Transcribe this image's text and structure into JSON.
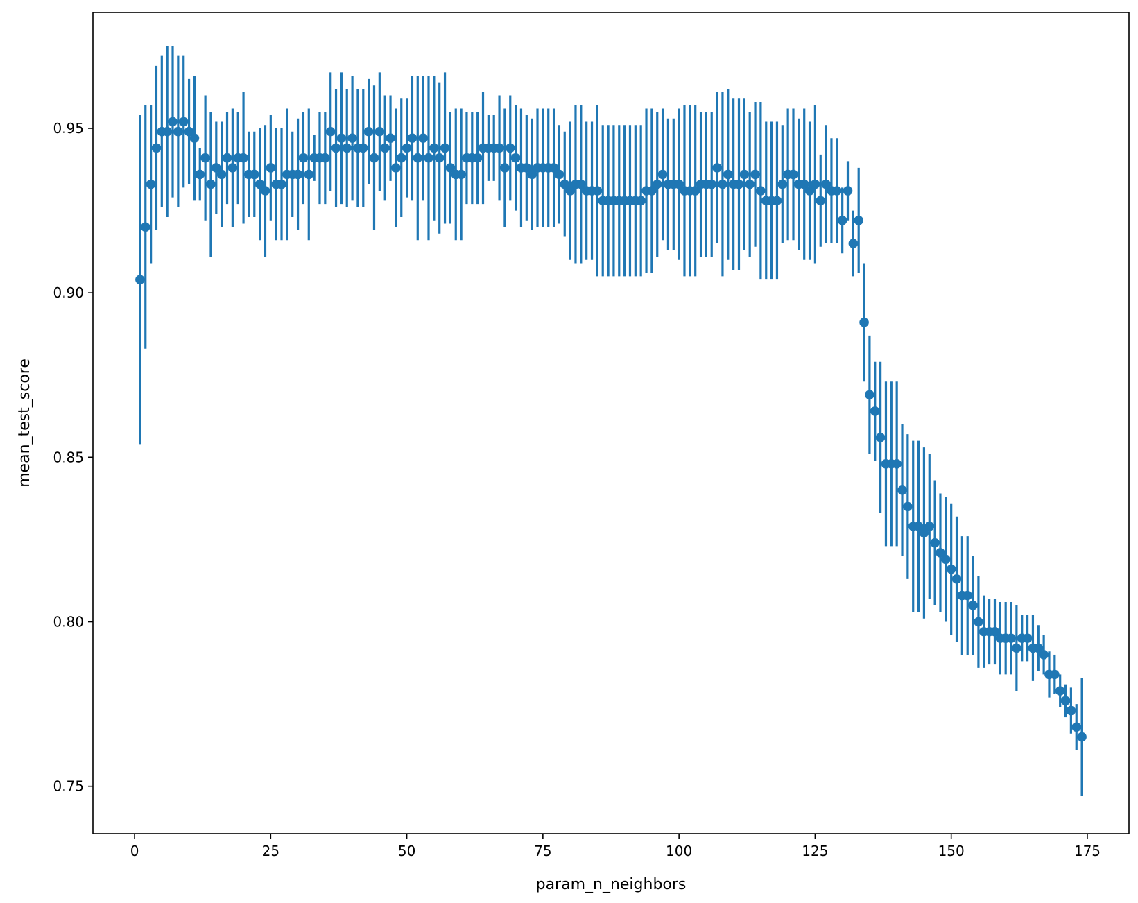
{
  "chart_data": {
    "type": "scatter",
    "title": "",
    "xlabel": "param_n_neighbors",
    "ylabel": "mean_test_score",
    "xlim": [
      -7.65,
      182.65
    ],
    "ylim": [
      0.7356,
      0.9852
    ],
    "xticks": [
      0,
      25,
      50,
      75,
      100,
      125,
      150,
      175
    ],
    "xtick_labels": [
      "0",
      "25",
      "50",
      "75",
      "100",
      "125",
      "150",
      "175"
    ],
    "yticks": [
      0.75,
      0.8,
      0.85,
      0.9,
      0.95
    ],
    "ytick_labels": [
      "0.75",
      "0.80",
      "0.85",
      "0.90",
      "0.95"
    ],
    "grid": false,
    "legend": "none",
    "color": "#1f77b4",
    "series": [
      {
        "x": [
          1,
          2,
          3,
          4,
          5,
          6,
          7,
          8,
          9,
          10,
          11,
          12,
          13,
          14,
          15,
          16,
          17,
          18,
          19,
          20,
          21,
          22,
          23,
          24,
          25,
          26,
          27,
          28,
          29,
          30,
          31,
          32,
          33,
          34,
          35,
          36,
          37,
          38,
          39,
          40,
          41,
          42,
          43,
          44,
          45,
          46,
          47,
          48,
          49,
          50,
          51,
          52,
          53,
          54,
          55,
          56,
          57,
          58,
          59,
          60,
          61,
          62,
          63,
          64,
          65,
          66,
          67,
          68,
          69,
          70,
          71,
          72,
          73,
          74,
          75,
          76,
          77,
          78,
          79,
          80,
          81,
          82,
          83,
          84,
          85,
          86,
          87,
          88,
          89,
          90,
          91,
          92,
          93,
          94,
          95,
          96,
          97,
          98,
          99,
          100,
          101,
          102,
          103,
          104,
          105,
          106,
          107,
          108,
          109,
          110,
          111,
          112,
          113,
          114,
          115,
          116,
          117,
          118,
          119,
          120,
          121,
          122,
          123,
          124,
          125,
          126,
          127,
          128,
          129,
          130,
          131,
          132,
          133,
          134,
          135,
          136,
          137,
          138,
          139,
          140,
          141,
          142,
          143,
          144,
          145,
          146,
          147,
          148,
          149,
          150,
          151,
          152,
          153,
          154,
          155,
          156,
          157,
          158,
          159,
          160,
          161,
          162,
          163,
          164,
          165,
          166,
          167,
          168,
          169,
          170,
          171,
          172,
          173,
          174
        ],
        "y": [
          0.904,
          0.92,
          0.933,
          0.944,
          0.949,
          0.949,
          0.952,
          0.949,
          0.952,
          0.949,
          0.947,
          0.936,
          0.941,
          0.933,
          0.938,
          0.936,
          0.941,
          0.938,
          0.941,
          0.941,
          0.936,
          0.936,
          0.933,
          0.931,
          0.938,
          0.933,
          0.933,
          0.936,
          0.936,
          0.936,
          0.941,
          0.936,
          0.941,
          0.941,
          0.941,
          0.949,
          0.944,
          0.947,
          0.944,
          0.947,
          0.944,
          0.944,
          0.949,
          0.941,
          0.949,
          0.944,
          0.947,
          0.938,
          0.941,
          0.944,
          0.947,
          0.941,
          0.947,
          0.941,
          0.944,
          0.941,
          0.944,
          0.938,
          0.936,
          0.936,
          0.941,
          0.941,
          0.941,
          0.944,
          0.944,
          0.944,
          0.944,
          0.938,
          0.944,
          0.941,
          0.938,
          0.938,
          0.936,
          0.938,
          0.938,
          0.938,
          0.938,
          0.936,
          0.933,
          0.931,
          0.933,
          0.933,
          0.931,
          0.931,
          0.931,
          0.928,
          0.928,
          0.928,
          0.928,
          0.928,
          0.928,
          0.928,
          0.928,
          0.931,
          0.931,
          0.933,
          0.936,
          0.933,
          0.933,
          0.933,
          0.931,
          0.931,
          0.931,
          0.933,
          0.933,
          0.933,
          0.938,
          0.933,
          0.936,
          0.933,
          0.933,
          0.936,
          0.933,
          0.936,
          0.931,
          0.928,
          0.928,
          0.928,
          0.933,
          0.936,
          0.936,
          0.933,
          0.933,
          0.931,
          0.933,
          0.928,
          0.933,
          0.931,
          0.931,
          0.922,
          0.931,
          0.915,
          0.922,
          0.891,
          0.869,
          0.864,
          0.856,
          0.848,
          0.848,
          0.848,
          0.84,
          0.835,
          0.829,
          0.829,
          0.827,
          0.829,
          0.824,
          0.821,
          0.819,
          0.816,
          0.813,
          0.808,
          0.808,
          0.805,
          0.8,
          0.797,
          0.797,
          0.797,
          0.795,
          0.795,
          0.795,
          0.792,
          0.795,
          0.795,
          0.792,
          0.792,
          0.79,
          0.784,
          0.784,
          0.779,
          0.776,
          0.773,
          0.768,
          0.765
        ],
        "err": [
          0.05,
          0.037,
          0.024,
          0.025,
          0.023,
          0.026,
          0.023,
          0.023,
          0.02,
          0.016,
          0.019,
          0.008,
          0.019,
          0.022,
          0.014,
          0.016,
          0.014,
          0.018,
          0.014,
          0.02,
          0.013,
          0.013,
          0.017,
          0.02,
          0.016,
          0.017,
          0.017,
          0.02,
          0.013,
          0.017,
          0.014,
          0.02,
          0.007,
          0.014,
          0.014,
          0.018,
          0.018,
          0.02,
          0.018,
          0.019,
          0.018,
          0.018,
          0.016,
          0.022,
          0.018,
          0.016,
          0.013,
          0.018,
          0.018,
          0.015,
          0.019,
          0.025,
          0.019,
          0.025,
          0.022,
          0.023,
          0.023,
          0.017,
          0.02,
          0.02,
          0.014,
          0.014,
          0.014,
          0.017,
          0.01,
          0.01,
          0.016,
          0.018,
          0.016,
          0.016,
          0.018,
          0.016,
          0.017,
          0.018,
          0.018,
          0.018,
          0.018,
          0.015,
          0.016,
          0.021,
          0.024,
          0.024,
          0.021,
          0.021,
          0.026,
          0.023,
          0.023,
          0.023,
          0.023,
          0.023,
          0.023,
          0.023,
          0.023,
          0.025,
          0.025,
          0.022,
          0.02,
          0.02,
          0.02,
          0.023,
          0.026,
          0.026,
          0.026,
          0.022,
          0.022,
          0.022,
          0.023,
          0.028,
          0.026,
          0.026,
          0.026,
          0.023,
          0.022,
          0.022,
          0.027,
          0.024,
          0.024,
          0.024,
          0.018,
          0.02,
          0.02,
          0.02,
          0.023,
          0.021,
          0.024,
          0.014,
          0.018,
          0.016,
          0.016,
          0.01,
          0.009,
          0.01,
          0.016,
          0.018,
          0.018,
          0.015,
          0.023,
          0.025,
          0.025,
          0.025,
          0.02,
          0.022,
          0.026,
          0.026,
          0.026,
          0.022,
          0.019,
          0.018,
          0.019,
          0.02,
          0.019,
          0.018,
          0.018,
          0.015,
          0.014,
          0.011,
          0.01,
          0.01,
          0.011,
          0.011,
          0.011,
          0.013,
          0.007,
          0.007,
          0.01,
          0.007,
          0.006,
          0.007,
          0.006,
          0.005,
          0.005,
          0.007,
          0.007,
          0.018
        ]
      }
    ]
  }
}
